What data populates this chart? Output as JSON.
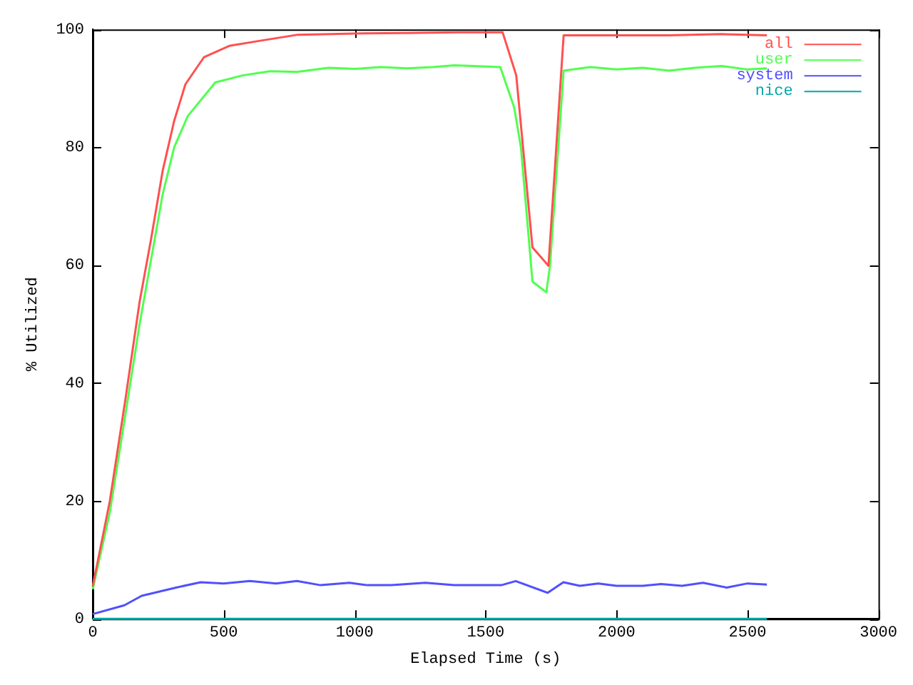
{
  "chart_data": {
    "type": "line",
    "xlabel": "Elapsed Time (s)",
    "ylabel": "% Utilized",
    "xlim": [
      0,
      3000
    ],
    "xticks": [
      0,
      500,
      1000,
      1500,
      2000,
      2500,
      3000
    ],
    "ylim": [
      0,
      100
    ],
    "yticks": [
      0,
      20,
      40,
      60,
      80,
      100
    ],
    "grid": false,
    "legend": "top right",
    "marker": "none",
    "line_style": "solid",
    "series": [
      {
        "name": "all",
        "color": "#ff5050",
        "x": [
          0,
          65,
          126,
          179,
          223,
          267,
          311,
          354,
          425,
          521,
          643,
          783,
          1000,
          1200,
          1400,
          1565,
          1617,
          1679,
          1740,
          1798,
          2000,
          2200,
          2400,
          2574
        ],
        "values": [
          5.5,
          19.9,
          37.6,
          53.8,
          64.5,
          76,
          84.5,
          90.7,
          95.3,
          97.2,
          98.1,
          99.1,
          99.3,
          99.4,
          99.5,
          99.5,
          92.2,
          63,
          59.9,
          99,
          99,
          99,
          99.2,
          99
        ]
      },
      {
        "name": "user",
        "color": "#50ff50",
        "x": [
          0,
          65,
          126,
          179,
          223,
          267,
          311,
          363,
          468,
          573,
          678,
          780,
          900,
          1000,
          1100,
          1200,
          1300,
          1381,
          1556,
          1609,
          1635,
          1679,
          1732,
          1746,
          1798,
          1900,
          2000,
          2100,
          2200,
          2300,
          2400,
          2500,
          2574
        ],
        "values": [
          5,
          18,
          35,
          50,
          61,
          72,
          80,
          85.3,
          91,
          92.2,
          92.9,
          92.8,
          93.5,
          93.3,
          93.6,
          93.4,
          93.6,
          93.9,
          93.6,
          86.8,
          79.9,
          57.2,
          55.4,
          60,
          93,
          93.6,
          93.2,
          93.5,
          93,
          93.5,
          93.8,
          93.2,
          93.4
        ]
      },
      {
        "name": "system",
        "color": "#5050ff",
        "x": [
          0,
          121,
          187,
          318,
          412,
          500,
          600,
          700,
          780,
          870,
          980,
          1050,
          1140,
          1270,
          1380,
          1560,
          1615,
          1737,
          1797,
          1860,
          1930,
          2000,
          2100,
          2170,
          2250,
          2330,
          2420,
          2500,
          2574
        ],
        "values": [
          0.8,
          2.3,
          3.9,
          5.3,
          6.2,
          6,
          6.4,
          6,
          6.4,
          5.7,
          6.1,
          5.7,
          5.7,
          6.1,
          5.7,
          5.7,
          6.4,
          4.4,
          6.2,
          5.6,
          6,
          5.6,
          5.6,
          5.9,
          5.6,
          6.1,
          5.3,
          6,
          5.8
        ]
      },
      {
        "name": "nice",
        "color": "#00a8a8",
        "x": [
          0,
          2574
        ],
        "values": [
          0,
          0
        ]
      }
    ]
  }
}
